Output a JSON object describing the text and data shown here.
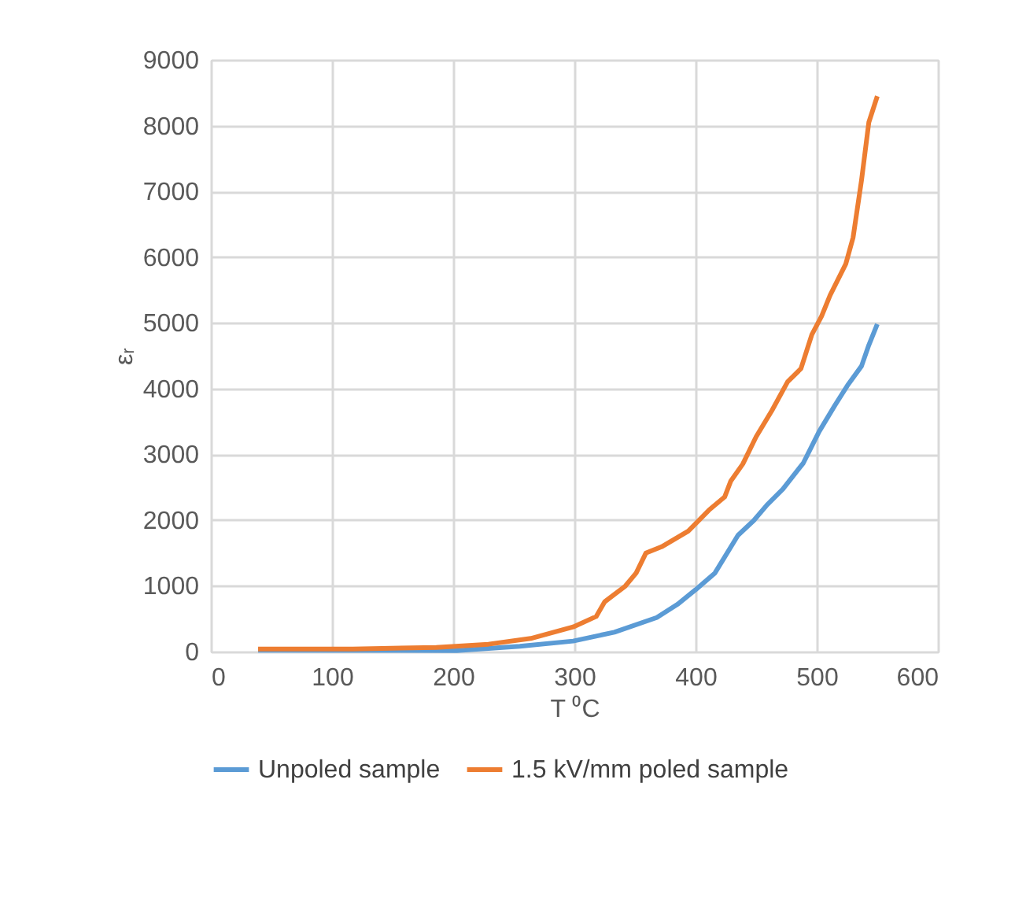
{
  "chart_data": {
    "type": "line",
    "xlabel": "T ⁰C",
    "ylabel": "εᵣ",
    "xlim": [
      0,
      600
    ],
    "xticks": [
      0,
      100,
      200,
      300,
      400,
      500,
      600
    ],
    "ylim": [
      0,
      9000
    ],
    "yticks": [
      0,
      1000,
      2000,
      3000,
      4000,
      5000,
      6000,
      7000,
      8000,
      9000
    ],
    "grid": true,
    "legend": "bottom",
    "line_style": "solid",
    "marker": "none",
    "series": [
      {
        "name": "Unpoled sample",
        "color": "#5b9bd5",
        "x": [
          39,
          203,
          255,
          299,
          333,
          368,
          385,
          400,
          416,
          435,
          448,
          459,
          472,
          489,
          502,
          515,
          526,
          537,
          543,
          550
        ],
        "values": [
          20,
          16,
          80,
          160,
          295,
          518,
          717,
          940,
          1195,
          1769,
          1992,
          2231,
          2470,
          2869,
          3347,
          3745,
          4064,
          4343,
          4661,
          4980
        ]
      },
      {
        "name": "1.5 kV/mm poled sample",
        "color": "#ed7d31",
        "x": [
          39,
          117,
          186,
          229,
          264,
          299,
          318,
          325,
          342,
          351,
          359,
          372,
          394,
          411,
          424,
          429,
          439,
          450,
          463,
          476,
          487,
          496,
          504,
          511,
          524,
          530,
          537,
          543,
          550
        ],
        "values": [
          40,
          40,
          64,
          112,
          200,
          375,
          534,
          757,
          996,
          1195,
          1498,
          1594,
          1833,
          2151,
          2351,
          2590,
          2853,
          3267,
          3665,
          4104,
          4303,
          4821,
          5100,
          5418,
          5896,
          6295,
          7171,
          8048,
          8446
        ]
      }
    ]
  }
}
